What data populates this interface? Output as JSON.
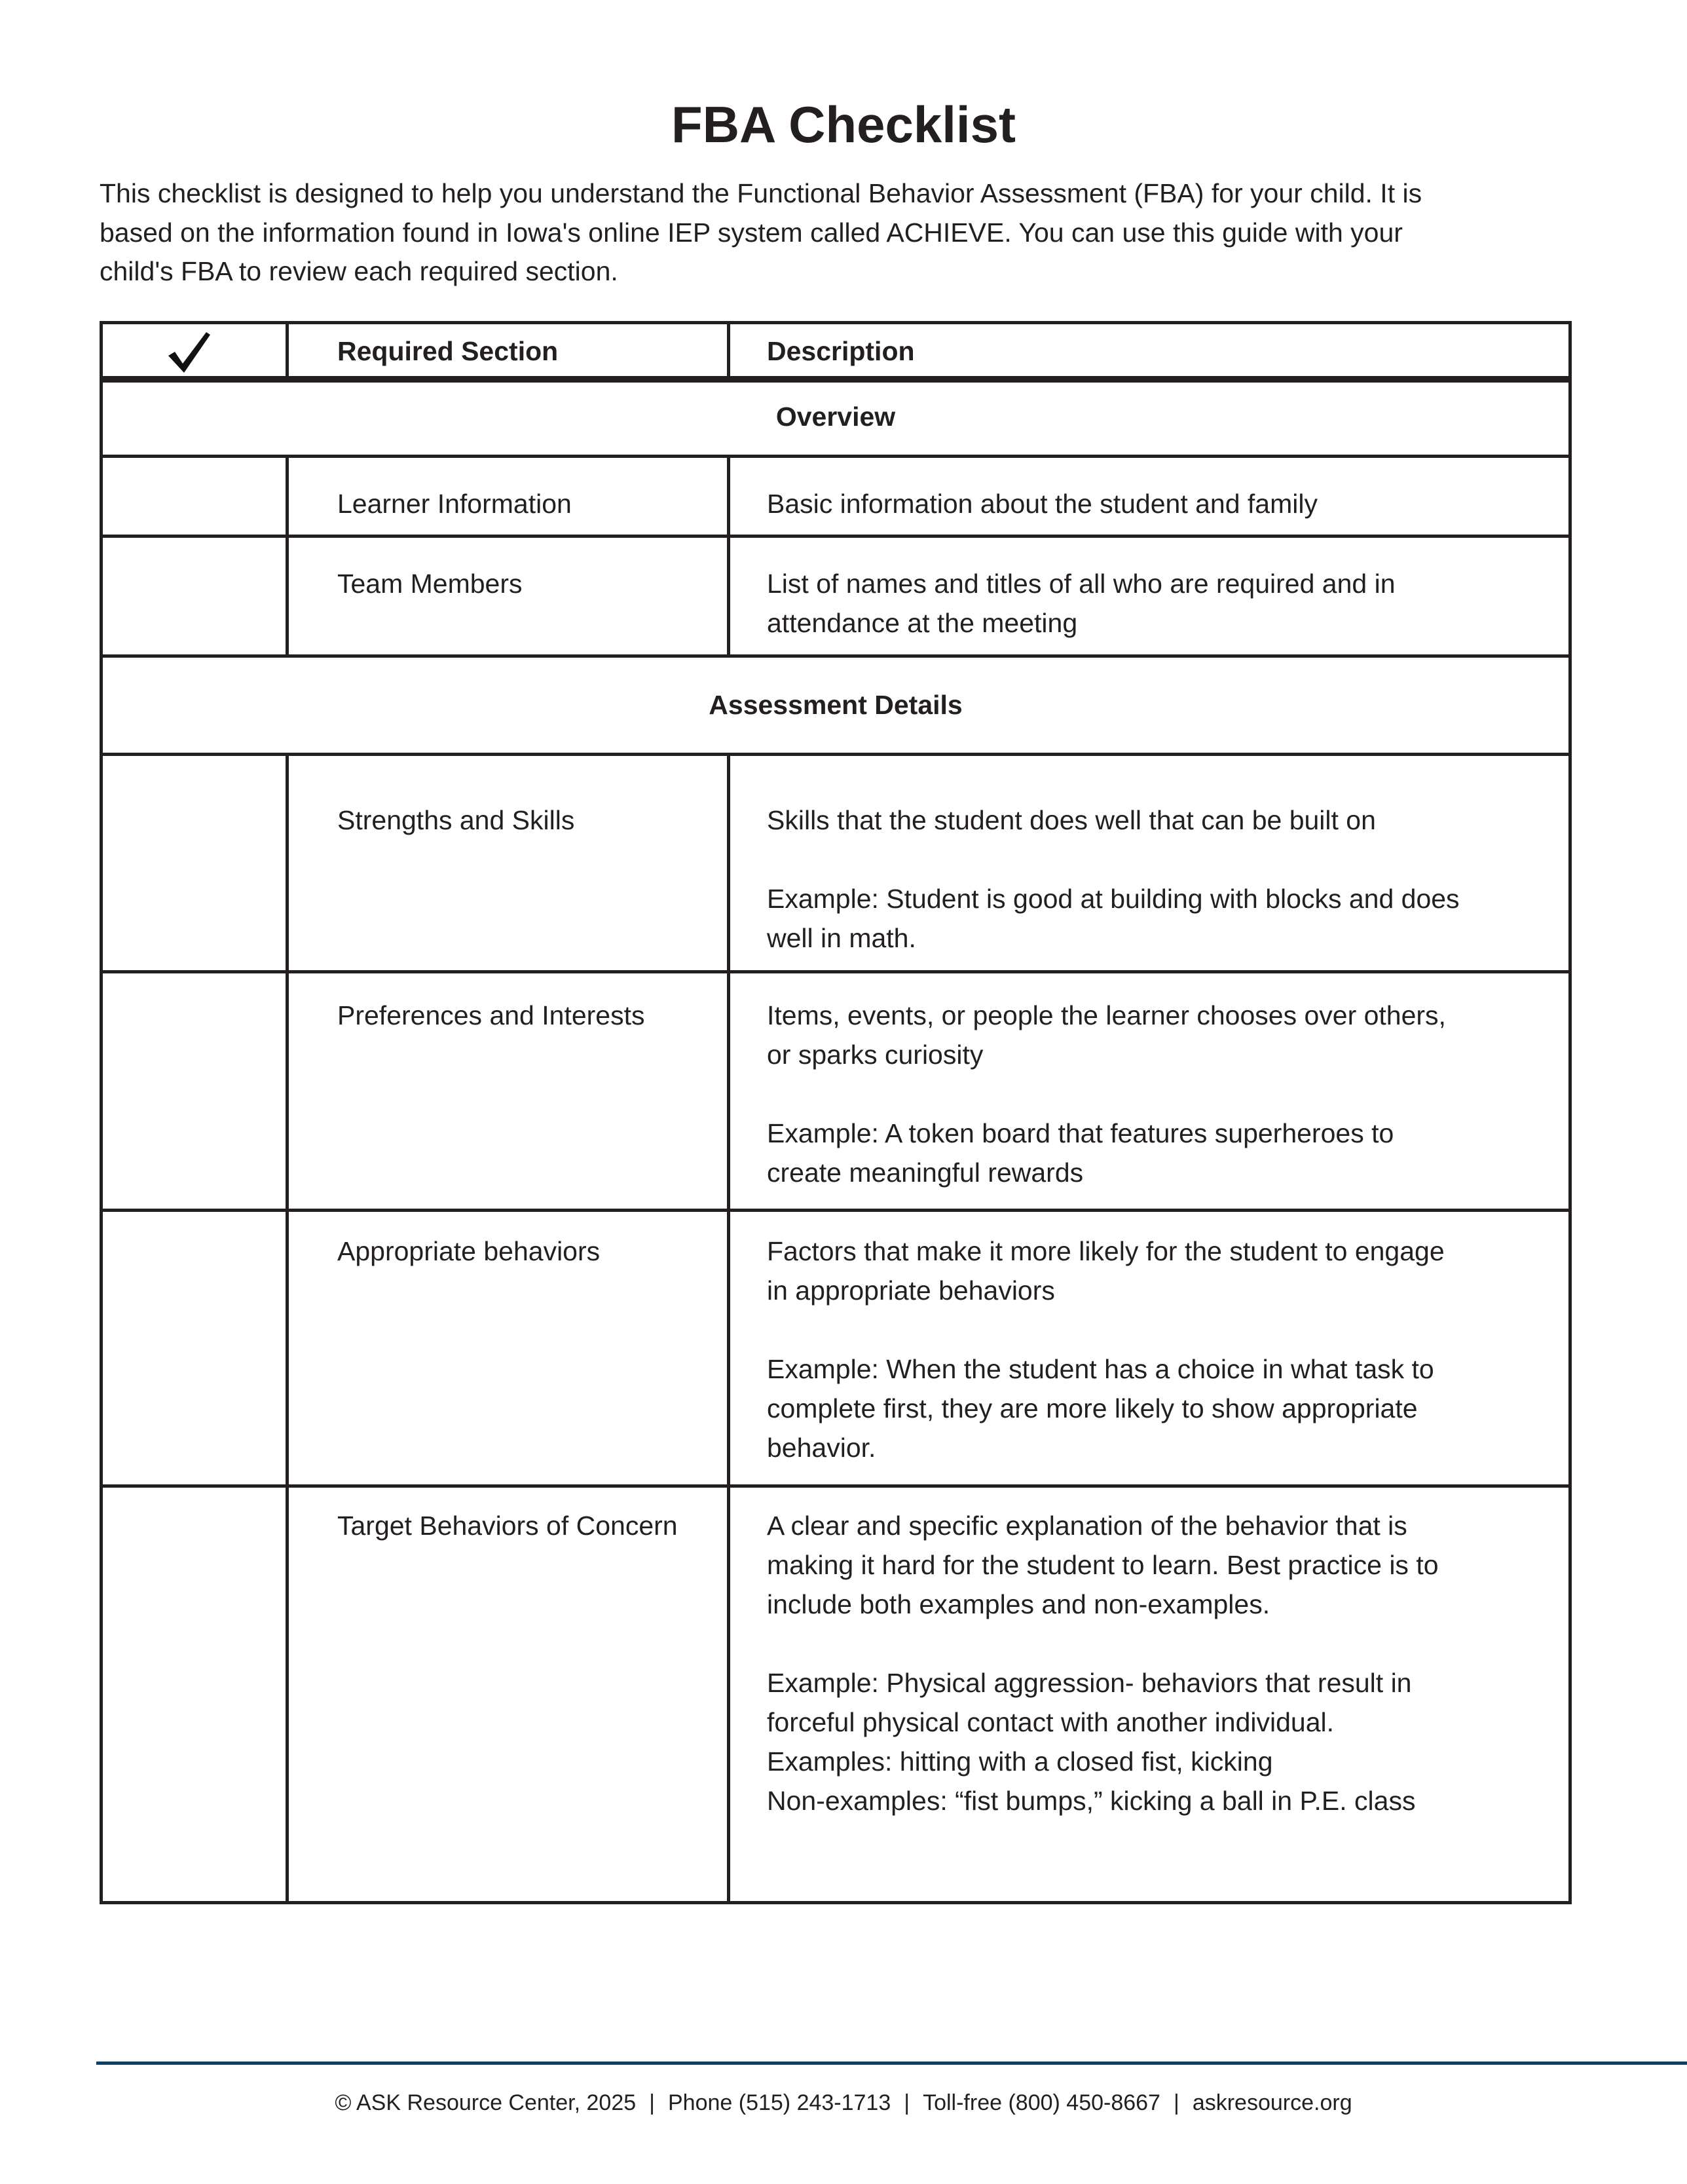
{
  "title": "FBA Checklist",
  "intro": [
    "This checklist is designed to help you understand the Functional Behavior Assessment (FBA) for your child. It is",
    "based on the information found in Iowa's online IEP system called ACHIEVE. You can use this guide with your",
    "child's FBA to review each required section."
  ],
  "table": {
    "check_icon": "checkmark-icon",
    "headers": {
      "section": "Required Section",
      "description": "Description"
    },
    "rows": [
      {
        "type": "section",
        "label": "Overview"
      },
      {
        "type": "item",
        "section": "Learner Information",
        "desc": [
          [
            "Basic information about the student and family"
          ]
        ]
      },
      {
        "type": "item",
        "section": "Team Members",
        "desc": [
          [
            "List of names and titles of all who are required and in",
            "attendance at the meeting"
          ]
        ]
      },
      {
        "type": "section",
        "label": "Assessment Details"
      },
      {
        "type": "item",
        "section": "Strengths and Skills",
        "desc": [
          [
            "Skills that the student does well that can be built on"
          ],
          [
            "Example: Student is good at building with blocks and does",
            "well in math."
          ]
        ]
      },
      {
        "type": "item",
        "section": "Preferences and Interests",
        "desc": [
          [
            "Items, events, or people the learner chooses over others,",
            "or sparks curiosity"
          ],
          [
            "Example:  A token board that features superheroes to",
            "create meaningful rewards"
          ]
        ]
      },
      {
        "type": "item",
        "section": "Appropriate behaviors",
        "desc": [
          [
            "Factors that make it more likely for the student to engage",
            "in appropriate behaviors"
          ],
          [
            "Example: When the student has a choice in what task to",
            "complete first, they are more likely to show appropriate",
            "behavior."
          ]
        ]
      },
      {
        "type": "item",
        "section": "Target Behaviors of Concern",
        "desc": [
          [
            "A clear and specific explanation of the behavior that is",
            "making it hard for the student to learn. Best practice is to",
            "include both examples and non-examples."
          ],
          [
            "Example: Physical aggression- behaviors that result in",
            "forceful physical contact with another individual.",
            "Examples: hitting with a closed fist, kicking",
            "Non-examples: “fist bumps,” kicking a ball in P.E. class"
          ]
        ]
      }
    ]
  },
  "footer": {
    "copyright": "© ASK Resource Center, 2025",
    "phone": "Phone (515) 243-1713",
    "tollfree": "Toll-free (800) 450-8667",
    "website": "askresource.org",
    "separator": "|",
    "rule_color": "#0f3f63"
  }
}
